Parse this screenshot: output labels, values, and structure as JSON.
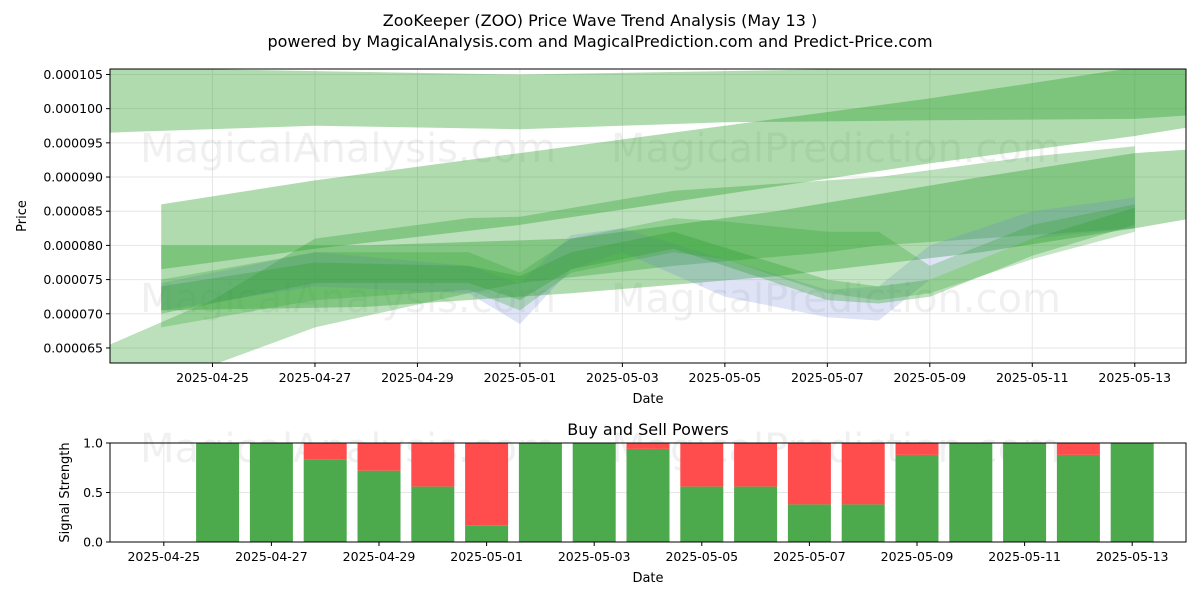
{
  "page_title": "ZooKeeper (ZOO) Price Wave Trend Analysis (May 13 )",
  "page_subtitle": "powered by MagicalAnalysis.com and MagicalPrediction.com and Predict-Price.com",
  "watermarks": [
    "MagicalAnalysis.com",
    "MagicalPrediction.com"
  ],
  "colors": {
    "band_green": "#2ca02c",
    "band_blue": "#6a7fd0",
    "buy": "#4caa4c",
    "sell": "#ff4c4c",
    "grid": "#e6e6e6"
  },
  "chart_data": [
    {
      "type": "area",
      "title": "",
      "xlabel": "Date",
      "ylabel": "Price",
      "grid": true,
      "xlim": [
        "2025-04-23",
        "2025-05-14"
      ],
      "ylim": [
        6.28e-05,
        0.0001058
      ],
      "x_ticks": [
        "2025-04-25",
        "2025-04-27",
        "2025-04-29",
        "2025-05-01",
        "2025-05-03",
        "2025-05-05",
        "2025-05-07",
        "2025-05-09",
        "2025-05-11",
        "2025-05-13"
      ],
      "y_ticks": [
        "0.000065",
        "0.000070",
        "0.000075",
        "0.000080",
        "0.000085",
        "0.000090",
        "0.000095",
        "0.000100",
        "0.000105"
      ],
      "bands": [
        {
          "color": "green",
          "opacity": 0.38,
          "x": [
            "2025-04-23",
            "2025-04-27",
            "2025-05-01",
            "2025-05-05",
            "2025-05-09",
            "2025-05-13",
            "2025-05-14"
          ],
          "upper": [
            0.000106,
            0.0001055,
            0.000105,
            0.0001055,
            0.000106,
            0.0001065,
            0.0001065
          ],
          "lower": [
            9.65e-05,
            9.75e-05,
            9.7e-05,
            9.8e-05,
            9.83e-05,
            9.85e-05,
            9.9e-05
          ]
        },
        {
          "color": "green",
          "opacity": 0.38,
          "x": [
            "2025-04-24",
            "2025-04-27",
            "2025-05-01",
            "2025-05-05",
            "2025-05-09",
            "2025-05-13",
            "2025-05-14"
          ],
          "upper": [
            8.6e-05,
            8.95e-05,
            9.35e-05,
            9.75e-05,
            0.0001015,
            0.000106,
            0.0001065
          ],
          "lower": [
            7.65e-05,
            7.95e-05,
            8.3e-05,
            8.75e-05,
            9.2e-05,
            9.6e-05,
            9.72e-05
          ]
        },
        {
          "color": "green",
          "opacity": 0.38,
          "x": [
            "2025-04-24",
            "2025-04-28",
            "2025-05-02",
            "2025-05-06",
            "2025-05-10",
            "2025-05-13",
            "2025-05-14"
          ],
          "upper": [
            8e-05,
            8e-05,
            8.1e-05,
            8.5e-05,
            9e-05,
            9.35e-05,
            9.4e-05
          ],
          "lower": [
            7.05e-05,
            7.1e-05,
            7.3e-05,
            7.55e-05,
            7.9e-05,
            8.25e-05,
            8.38e-05
          ]
        },
        {
          "color": "green",
          "opacity": 0.32,
          "x": [
            "2025-04-23",
            "2025-04-25",
            "2025-04-27",
            "2025-04-30",
            "2025-05-01",
            "2025-05-04",
            "2025-05-07",
            "2025-05-08",
            "2025-05-11",
            "2025-05-13"
          ],
          "upper": [
            6.55e-05,
            7.2e-05,
            8.1e-05,
            8.4e-05,
            8.42e-05,
            8.8e-05,
            8.95e-05,
            9e-05,
            9.3e-05,
            9.45e-05
          ],
          "lower": [
            6.25e-05,
            6.25e-05,
            6.8e-05,
            7.3e-05,
            7.45e-05,
            7.7e-05,
            7.9e-05,
            8e-05,
            8.15e-05,
            8.25e-05
          ]
        },
        {
          "color": "blue",
          "opacity": 0.22,
          "x": [
            "2025-04-24",
            "2025-04-27",
            "2025-04-30",
            "2025-05-01",
            "2025-05-02",
            "2025-05-03",
            "2025-05-05",
            "2025-05-07",
            "2025-05-08",
            "2025-05-09",
            "2025-05-11",
            "2025-05-13"
          ],
          "upper": [
            7.45e-05,
            7.9e-05,
            7.7e-05,
            7.45e-05,
            8.15e-05,
            8.25e-05,
            7.8e-05,
            7.35e-05,
            7.4e-05,
            8e-05,
            8.5e-05,
            8.7e-05
          ],
          "lower": [
            7.05e-05,
            7.4e-05,
            7.3e-05,
            6.85e-05,
            7.65e-05,
            7.9e-05,
            7.25e-05,
            6.95e-05,
            6.9e-05,
            7.5e-05,
            8.1e-05,
            8.25e-05
          ]
        },
        {
          "color": "green",
          "opacity": 0.28,
          "x": [
            "2025-04-24",
            "2025-04-27",
            "2025-04-30",
            "2025-05-01",
            "2025-05-02",
            "2025-05-04",
            "2025-05-05",
            "2025-05-07",
            "2025-05-08",
            "2025-05-09",
            "2025-05-11",
            "2025-05-13"
          ],
          "upper": [
            7.5e-05,
            7.9e-05,
            7.9e-05,
            7.6e-05,
            8.1e-05,
            8.4e-05,
            8.35e-05,
            8.2e-05,
            8.2e-05,
            7.7e-05,
            8.3e-05,
            8.6e-05
          ],
          "lower": [
            6.8e-05,
            7.2e-05,
            7.35e-05,
            7.05e-05,
            7.6e-05,
            7.9e-05,
            7.8e-05,
            7.3e-05,
            7.2e-05,
            7.3e-05,
            7.8e-05,
            8.2e-05
          ]
        },
        {
          "color": "green",
          "opacity": 0.32,
          "x": [
            "2025-04-24",
            "2025-04-27",
            "2025-04-30",
            "2025-05-01",
            "2025-05-02",
            "2025-05-04",
            "2025-05-07",
            "2025-05-08",
            "2025-05-09",
            "2025-05-11",
            "2025-05-13"
          ],
          "upper": [
            7.4e-05,
            7.75e-05,
            7.7e-05,
            7.55e-05,
            7.9e-05,
            8.2e-05,
            7.5e-05,
            7.4e-05,
            7.5e-05,
            8.1e-05,
            8.55e-05
          ],
          "lower": [
            7e-05,
            7.45e-05,
            7.45e-05,
            7.2e-05,
            7.65e-05,
            7.95e-05,
            7.2e-05,
            7.15e-05,
            7.25e-05,
            7.85e-05,
            8.3e-05
          ]
        }
      ]
    },
    {
      "type": "bar",
      "title": "Buy and Sell Powers",
      "xlabel": "Date",
      "ylabel": "Signal Strength",
      "grid": true,
      "xlim": [
        "2025-04-24",
        "2025-05-14"
      ],
      "ylim": [
        0,
        1
      ],
      "x_ticks": [
        "2025-04-25",
        "2025-04-27",
        "2025-04-29",
        "2025-05-01",
        "2025-05-03",
        "2025-05-05",
        "2025-05-07",
        "2025-05-09",
        "2025-05-11",
        "2025-05-13"
      ],
      "y_ticks": [
        "0.0",
        "0.5",
        "1.0"
      ],
      "categories": [
        "2025-04-26",
        "2025-04-27",
        "2025-04-28",
        "2025-04-29",
        "2025-04-30",
        "2025-05-01",
        "2025-05-02",
        "2025-05-03",
        "2025-05-04",
        "2025-05-05",
        "2025-05-06",
        "2025-05-07",
        "2025-05-08",
        "2025-05-09",
        "2025-05-10",
        "2025-05-11",
        "2025-05-12",
        "2025-05-13"
      ],
      "series": [
        {
          "values": [
            1.0,
            1.0,
            0.83,
            0.72,
            0.56,
            0.17,
            1.0,
            1.0,
            0.94,
            0.56,
            0.56,
            0.38,
            0.38,
            0.88,
            1.0,
            1.0,
            0.88,
            1.0
          ]
        },
        {
          "values": [
            0.0,
            0.0,
            0.17,
            0.28,
            0.44,
            0.83,
            0.0,
            0.0,
            0.06,
            0.44,
            0.44,
            0.62,
            0.62,
            0.12,
            0.0,
            0.0,
            0.12,
            0.0
          ]
        }
      ]
    }
  ]
}
